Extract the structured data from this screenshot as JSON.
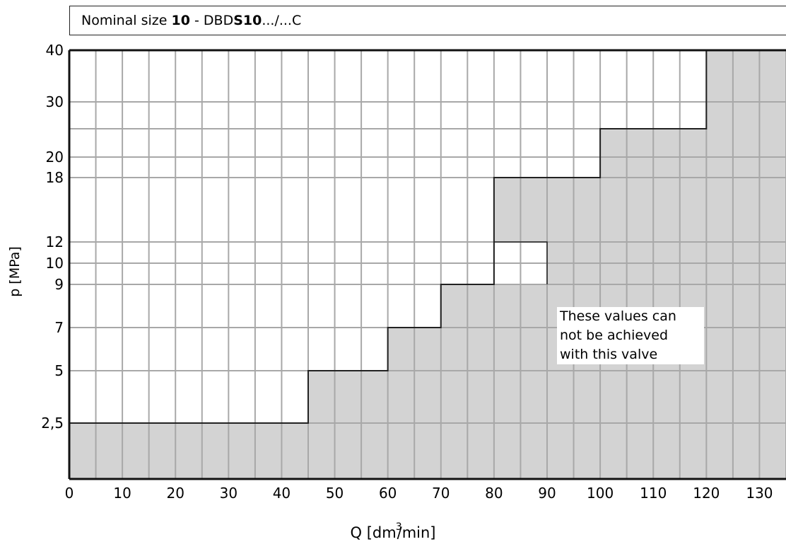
{
  "chart_data": {
    "type": "area",
    "title_prefix": "Nominal size ",
    "title_size": "10",
    "title_mid": "  -  DBD",
    "title_model": "S10",
    "title_suffix": ".../...C",
    "xlabel_pre": "Q [dm",
    "xlabel_sup": "3",
    "xlabel_post": "/min]",
    "ylabel": "p [MPa]",
    "xlim": [
      0,
      135
    ],
    "x_ticks": [
      0,
      10,
      20,
      30,
      40,
      50,
      60,
      70,
      80,
      90,
      100,
      110,
      120,
      130
    ],
    "x_tick_labels": [
      "0",
      "10",
      "20",
      "30",
      "40",
      "50",
      "60",
      "70",
      "80",
      "90",
      "100",
      "110",
      "120",
      "130"
    ],
    "y_ticks": [
      2.5,
      5,
      7,
      9,
      10,
      12,
      18,
      20,
      30,
      40
    ],
    "y_tick_labels": [
      "2,5",
      "5",
      "7",
      "9",
      "10",
      "12",
      "18",
      "20",
      "30",
      "40"
    ],
    "grid": true,
    "limit_curve": [
      {
        "q_from": 0,
        "q_to": 45,
        "p": 2.5
      },
      {
        "q_from": 45,
        "q_to": 60,
        "p": 5
      },
      {
        "q_from": 60,
        "q_to": 70,
        "p": 7
      },
      {
        "q_from": 70,
        "q_to": 80,
        "p": 9
      },
      {
        "q_from": 80,
        "q_to": 100,
        "p": 18
      },
      {
        "q_from": 100,
        "q_to": 120,
        "p": 25
      },
      {
        "q_from": 120,
        "q_to": 135,
        "p": 40
      }
    ],
    "notch": {
      "q_from": 80,
      "q_to": 90,
      "p_from": 9,
      "p_to": 12
    },
    "annotation": [
      "These values can",
      "not be achieved",
      "with this valve"
    ],
    "colors": {
      "unachievable": "#d3d3d3",
      "grid": "#a8a8a8",
      "boundary": "#222222"
    }
  }
}
